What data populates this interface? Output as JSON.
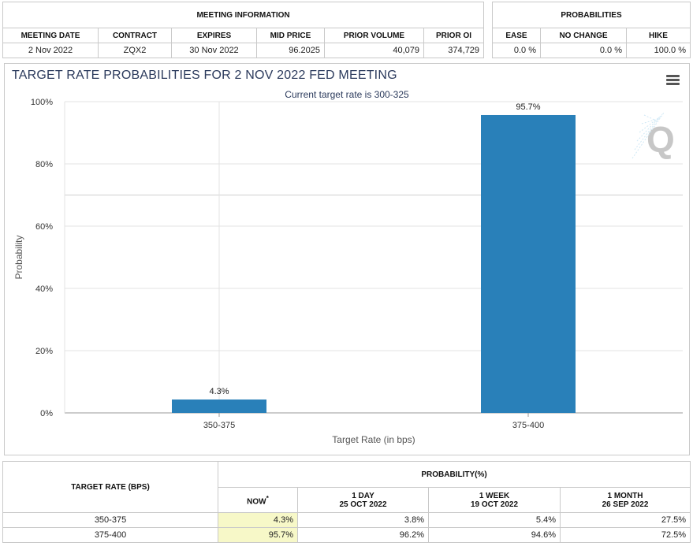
{
  "meeting_info": {
    "group_header": "MEETING INFORMATION",
    "headers": [
      "MEETING DATE",
      "CONTRACT",
      "EXPIRES",
      "MID PRICE",
      "PRIOR VOLUME",
      "PRIOR OI"
    ],
    "values": [
      "2 Nov 2022",
      "ZQX2",
      "30 Nov 2022",
      "96.2025",
      "40,079",
      "374,729"
    ]
  },
  "probabilities": {
    "group_header": "PROBABILITIES",
    "headers": [
      "EASE",
      "NO CHANGE",
      "HIKE"
    ],
    "values": [
      "0.0 %",
      "0.0 %",
      "100.0 %"
    ]
  },
  "chart": {
    "menu_icon": "hamburger-menu-icon",
    "watermark_icon": "q-logo-icon",
    "bar_color": "#2980b9"
  },
  "chart_data": {
    "type": "bar",
    "title": "TARGET RATE PROBABILITIES FOR 2 NOV 2022 FED MEETING",
    "subtitle": "Current target rate is 300-325",
    "xlabel": "Target Rate (in bps)",
    "ylabel": "Probability",
    "categories": [
      "350-375",
      "375-400"
    ],
    "values": [
      4.3,
      95.7
    ],
    "data_labels": [
      "4.3%",
      "95.7%"
    ],
    "ylim": [
      0,
      100
    ],
    "yticks": [
      "0%",
      "20%",
      "40%",
      "60%",
      "80%",
      "100%"
    ],
    "grid": true,
    "legend": "none"
  },
  "bottom_table": {
    "row_header": "TARGET RATE (BPS)",
    "group_header": "PROBABILITY(%)",
    "now_label": "NOW",
    "now_marker": "*",
    "periods": [
      {
        "label": "1 DAY",
        "date": "25 OCT 2022"
      },
      {
        "label": "1 WEEK",
        "date": "19 OCT 2022"
      },
      {
        "label": "1 MONTH",
        "date": "26 SEP 2022"
      }
    ],
    "rows": [
      {
        "rate": "350-375",
        "now": "4.3%",
        "day": "3.8%",
        "week": "5.4%",
        "month": "27.5%"
      },
      {
        "rate": "375-400",
        "now": "95.7%",
        "day": "96.2%",
        "week": "94.6%",
        "month": "72.5%"
      }
    ]
  }
}
